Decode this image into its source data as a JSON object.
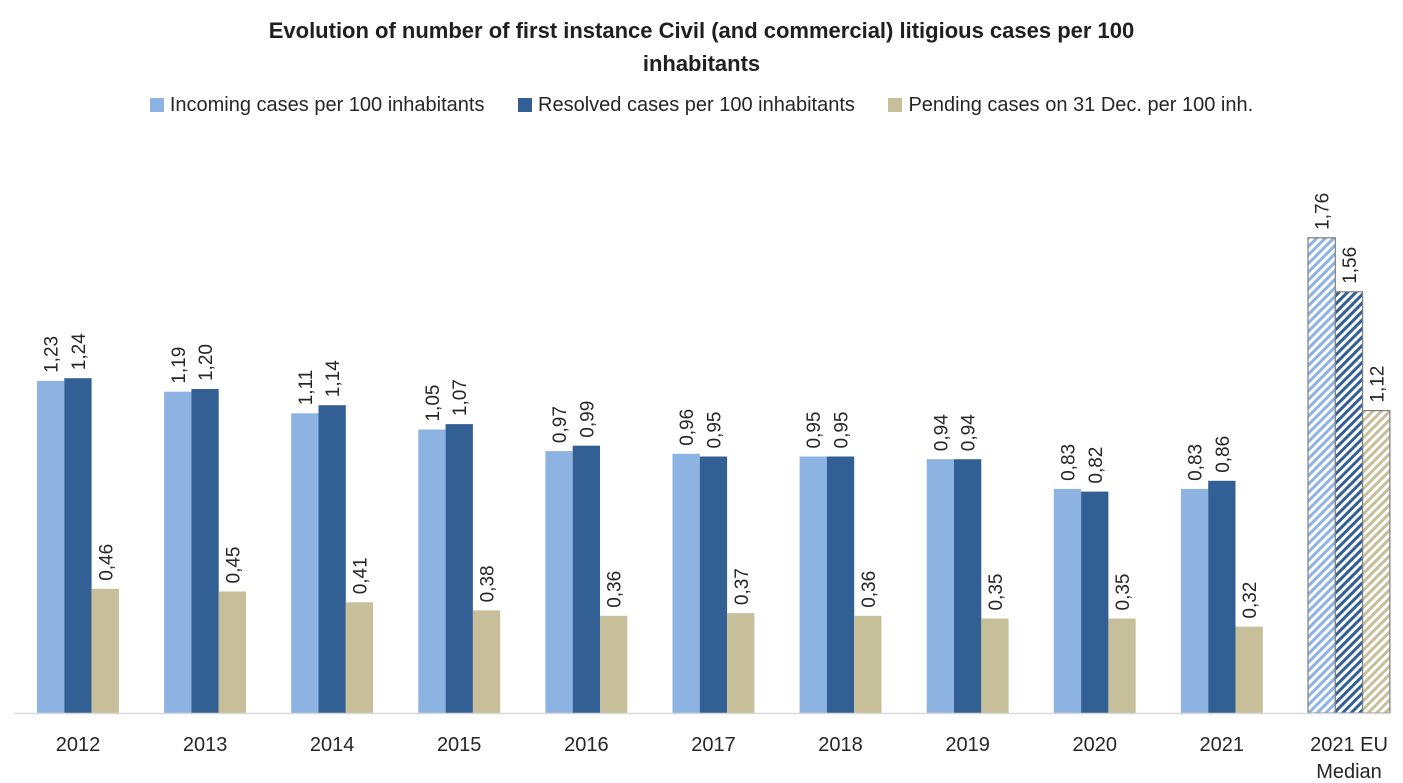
{
  "chart_data": {
    "type": "bar",
    "title_line1": "Evolution of number of first instance Civil (and commercial) litigious cases per 100",
    "title_line2": "inhabitants",
    "categories": [
      "2012",
      "2013",
      "2014",
      "2015",
      "2016",
      "2017",
      "2018",
      "2019",
      "2020",
      "2021",
      "2021 EU Median"
    ],
    "series": [
      {
        "name": "Incoming cases per 100 inhabitants",
        "color": "#8db3e2",
        "values": [
          1.23,
          1.19,
          1.11,
          1.05,
          0.97,
          0.96,
          0.95,
          0.94,
          0.83,
          0.83,
          1.76
        ],
        "labels": [
          "1,23",
          "1,19",
          "1,11",
          "1,05",
          "0,97",
          "0,96",
          "0,95",
          "0,94",
          "0,83",
          "0,83",
          "1,76"
        ]
      },
      {
        "name": "Resolved cases per 100 inhabitants",
        "color": "#336094",
        "values": [
          1.24,
          1.2,
          1.14,
          1.07,
          0.99,
          0.95,
          0.95,
          0.94,
          0.82,
          0.86,
          1.56
        ],
        "labels": [
          "1,24",
          "1,20",
          "1,14",
          "1,07",
          "0,99",
          "0,95",
          "0,95",
          "0,94",
          "0,82",
          "0,86",
          "1,56"
        ]
      },
      {
        "name": "Pending cases on 31 Dec. per 100 inh.",
        "color": "#c6bf99",
        "values": [
          0.46,
          0.45,
          0.41,
          0.38,
          0.36,
          0.37,
          0.36,
          0.35,
          0.35,
          0.32,
          1.12
        ],
        "labels": [
          "0,46",
          "0,45",
          "0,41",
          "0,38",
          "0,36",
          "0,37",
          "0,36",
          "0,35",
          "0,35",
          "0,32",
          "1,12"
        ]
      }
    ],
    "hatched_categories": [
      "2021 EU Median"
    ],
    "ylim": [
      0,
      2.0
    ],
    "grid": false,
    "legend_position": "top",
    "data_labels": true,
    "xlabel": "",
    "ylabel": ""
  }
}
